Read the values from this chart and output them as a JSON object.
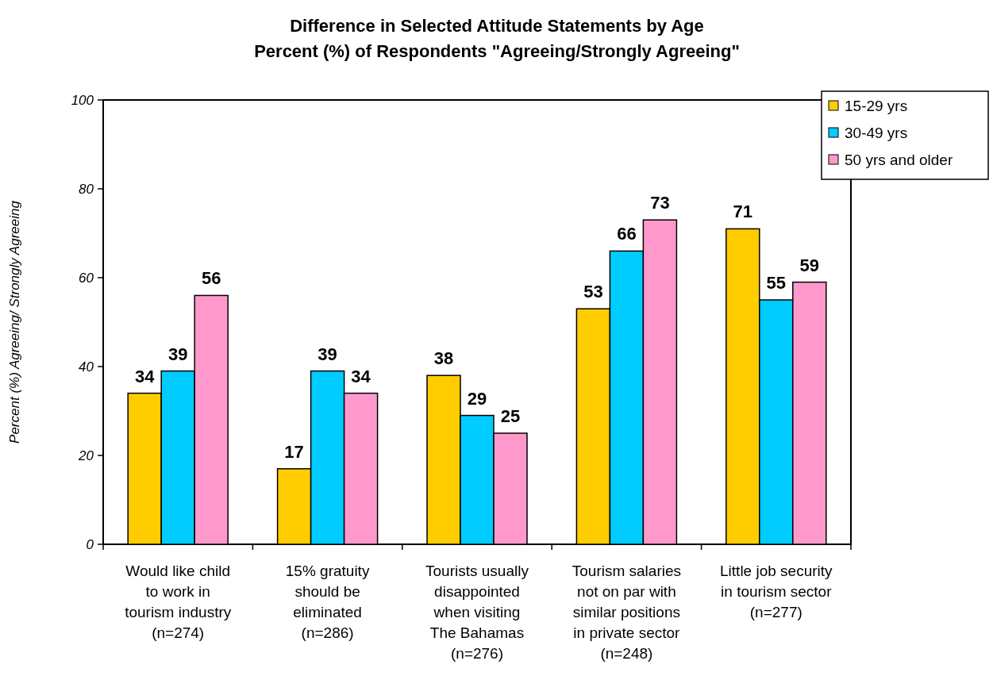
{
  "chart_data": {
    "type": "bar",
    "title": "Difference in Selected Attitude Statements by Age",
    "subtitle": "Percent (%) of Respondents \"Agreeing/Strongly Agreeing\"",
    "ylabel": "Percent (%) Agreeing/ Strongly Agreeing",
    "categories": [
      "Would like child\nto work in\ntourism industry\n(n=274)",
      "15% gratuity\nshould be\neliminated\n(n=286)",
      "Tourists usually\ndisappointed\nwhen visiting\nThe Bahamas\n(n=276)",
      "Tourism salaries\nnot on par with\nsimilar positions\nin private sector\n(n=248)",
      "Little job security\nin tourism sector\n(n=277)"
    ],
    "series": [
      {
        "name": "15-29 yrs",
        "color": "#ffcc00",
        "values": [
          34,
          17,
          38,
          53,
          71
        ]
      },
      {
        "name": "30-49 yrs",
        "color": "#00ccff",
        "values": [
          39,
          39,
          29,
          66,
          55
        ]
      },
      {
        "name": "50 yrs and older",
        "color": "#ff99cc",
        "values": [
          56,
          34,
          25,
          73,
          59
        ]
      }
    ],
    "ylim": [
      0,
      100
    ],
    "yticks": [
      0,
      20,
      40,
      60,
      80,
      100
    ],
    "grid": false,
    "legend": "top right",
    "data_labels": true
  }
}
